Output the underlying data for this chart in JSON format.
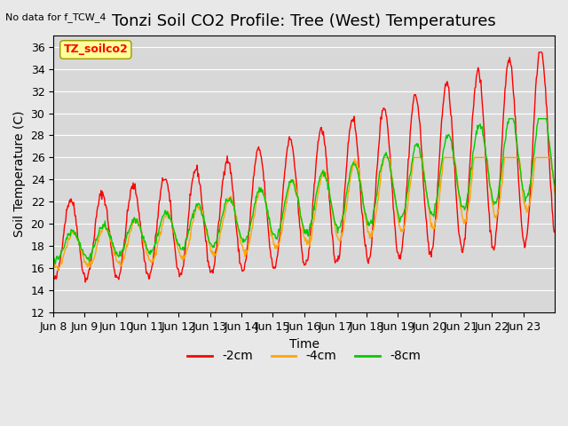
{
  "title": "Tonzi Soil CO2 Profile: Tree (West) Temperatures",
  "no_data_label": "No data for f_TCW_4",
  "station_label": "TZ_soilco2",
  "ylabel": "Soil Temperature (C)",
  "xlabel": "Time",
  "ylim": [
    12,
    37
  ],
  "yticks": [
    12,
    14,
    16,
    18,
    20,
    22,
    24,
    26,
    28,
    30,
    32,
    34,
    36
  ],
  "xtick_labels": [
    "Jun 8",
    "Jun 9",
    "Jun 10",
    "Jun 11",
    "Jun 12",
    "Jun 13",
    "Jun 14",
    "Jun 15",
    "Jun 16",
    "Jun 17",
    "Jun 18",
    "Jun 19",
    "Jun 20",
    "Jun 21",
    "Jun 22",
    "Jun 23"
  ],
  "legend_entries": [
    "-2cm",
    "-4cm",
    "-8cm"
  ],
  "line_colors": [
    "#ff0000",
    "#ffa500",
    "#00cc00"
  ],
  "background_color": "#e8e8e8",
  "plot_bg_color": "#d8d8d8",
  "title_fontsize": 13,
  "label_fontsize": 10,
  "tick_fontsize": 9,
  "legend_fontsize": 10,
  "station_box_color": "#ffff99",
  "station_box_edge": "#999900"
}
